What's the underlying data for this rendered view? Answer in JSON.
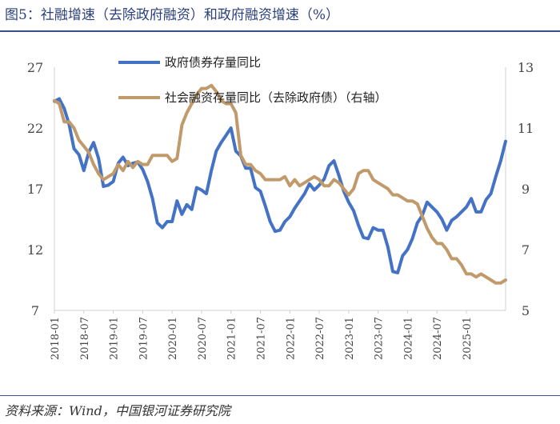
{
  "header": {
    "title": "图5：社融增速（去除政府融资）和政府融资增速（%）"
  },
  "footer": {
    "source": "资料来源：Wind，中国银河证券研究院"
  },
  "colors": {
    "series_gov": "#4472c4",
    "series_tsf": "#c19a6b",
    "axis": "#d0d0d0",
    "title": "#2b3f7e"
  },
  "chart_data": {
    "type": "line",
    "title": "图5：社融增速（去除政府融资）和政府融资增速（%）",
    "x_tick_labels": [
      "2018-01",
      "2018-07",
      "2019-01",
      "2019-07",
      "2020-01",
      "2020-07",
      "2021-01",
      "2021-07",
      "2022-01",
      "2022-07",
      "2023-01",
      "2023-07",
      "2024-01",
      "2024-07",
      "2025-01"
    ],
    "left_axis": {
      "ylim": [
        7,
        27
      ],
      "ticks": [
        7,
        12,
        17,
        22,
        27
      ]
    },
    "right_axis": {
      "ylim": [
        5,
        13
      ],
      "ticks": [
        5,
        7,
        9,
        11,
        13
      ]
    },
    "series": [
      {
        "name": "政府债券存量同比",
        "axis": "left",
        "values": [
          24.2,
          24.4,
          23.6,
          22.3,
          20.3,
          19.8,
          18.5,
          20.0,
          20.8,
          19.5,
          17.2,
          17.3,
          17.6,
          19.1,
          19.6,
          18.9,
          19.1,
          19.2,
          18.6,
          17.6,
          16.2,
          14.2,
          13.8,
          14.3,
          14.3,
          16.0,
          14.9,
          15.7,
          15.3,
          17.1,
          16.9,
          16.6,
          18.5,
          20.1,
          20.8,
          21.4,
          22.0,
          20.1,
          19.7,
          18.7,
          18.7,
          17.1,
          16.8,
          15.6,
          14.3,
          13.5,
          13.6,
          14.3,
          14.7,
          15.4,
          16.0,
          16.6,
          17.4,
          16.9,
          17.3,
          17.8,
          18.9,
          19.3,
          18.1,
          16.8,
          15.9,
          15.2,
          14.0,
          13.0,
          12.9,
          13.8,
          13.6,
          13.6,
          12.2,
          10.2,
          10.1,
          11.5,
          12.0,
          12.9,
          14.2,
          14.8,
          15.9,
          15.5,
          15.1,
          14.5,
          13.6,
          14.4,
          14.7,
          15.1,
          15.5,
          16.2,
          15.1,
          15.1,
          16.1,
          16.6,
          18.0,
          19.3,
          20.9
        ]
      },
      {
        "name": "社会融资存量同比（去除政府债）（右轴）",
        "axis": "right",
        "values": [
          11.9,
          11.8,
          11.2,
          11.2,
          11.0,
          10.6,
          10.4,
          10.2,
          9.8,
          9.5,
          9.3,
          9.4,
          9.5,
          9.8,
          9.6,
          9.9,
          9.7,
          9.9,
          9.8,
          9.8,
          10.1,
          10.1,
          10.1,
          10.1,
          9.9,
          10.0,
          11.1,
          11.5,
          11.8,
          12.1,
          12.3,
          12.3,
          12.4,
          12.2,
          11.9,
          11.8,
          11.8,
          11.5,
          10.1,
          9.8,
          9.8,
          9.6,
          9.5,
          9.3,
          9.3,
          9.3,
          9.3,
          9.4,
          9.1,
          9.3,
          9.1,
          9.2,
          9.3,
          9.4,
          9.3,
          9.1,
          9.1,
          9.3,
          9.2,
          9.0,
          8.8,
          9.0,
          9.5,
          9.6,
          9.6,
          9.3,
          9.2,
          9.1,
          9.0,
          8.8,
          8.8,
          8.7,
          8.6,
          8.6,
          8.5,
          8.1,
          7.7,
          7.4,
          7.2,
          7.2,
          7.0,
          6.7,
          6.7,
          6.5,
          6.2,
          6.2,
          6.1,
          6.2,
          6.1,
          6.0,
          5.9,
          5.9,
          6.0
        ]
      }
    ],
    "legend_position": "top-center"
  }
}
